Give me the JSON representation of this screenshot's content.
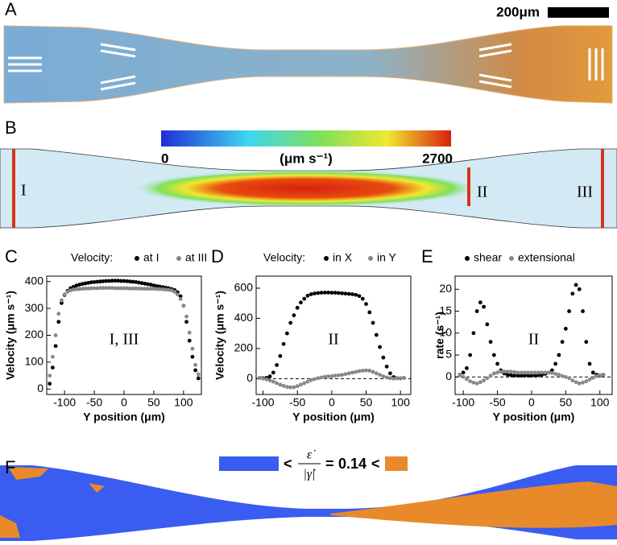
{
  "panels": {
    "A": {
      "letter": "A",
      "scale_bar": "200μm"
    },
    "B": {
      "letter": "B",
      "colorbar_min": 0,
      "colorbar_unit": "(μm s⁻¹)",
      "colorbar_max": 2700,
      "labels": [
        "I",
        "II",
        "III"
      ]
    },
    "F": {
      "letter": "F",
      "left": "<",
      "formula_num": "ε̇",
      "formula_den": "|γ̇|",
      "equals": "=",
      "threshold": 0.14,
      "right": "<"
    }
  },
  "chart_data": [
    {
      "type": "scatter",
      "panel": "C",
      "legend_title": "Velocity:",
      "xlabel": "Y position (μm)",
      "ylabel": "Velocity (μm s⁻¹)",
      "annotation": "I, III",
      "zero_line": false,
      "x": [
        -125,
        -120,
        -115,
        -110,
        -105,
        -100,
        -95,
        -90,
        -85,
        -80,
        -75,
        -70,
        -65,
        -60,
        -55,
        -50,
        -45,
        -40,
        -35,
        -30,
        -25,
        -20,
        -15,
        -10,
        -5,
        0,
        5,
        10,
        15,
        20,
        25,
        30,
        35,
        40,
        45,
        50,
        55,
        60,
        65,
        70,
        75,
        80,
        85,
        90,
        95,
        100,
        105,
        110,
        115,
        120,
        125
      ],
      "series": [
        {
          "name": "at I",
          "color": "#000000",
          "values": [
            20,
            80,
            160,
            250,
            320,
            350,
            365,
            375,
            380,
            385,
            388,
            391,
            393,
            395,
            397,
            398,
            399,
            400,
            401,
            402,
            402,
            403,
            403,
            403,
            402,
            402,
            401,
            400,
            399,
            398,
            396,
            394,
            392,
            390,
            388,
            385,
            383,
            381,
            379,
            377,
            375,
            372,
            368,
            360,
            345,
            310,
            250,
            180,
            120,
            70,
            40
          ]
        },
        {
          "name": "at III",
          "color": "#888888",
          "values": [
            50,
            120,
            200,
            280,
            330,
            352,
            362,
            367,
            370,
            371,
            372,
            373,
            374,
            374,
            375,
            375,
            375,
            376,
            376,
            376,
            376,
            376,
            375,
            375,
            375,
            375,
            375,
            374,
            374,
            374,
            374,
            373,
            373,
            373,
            373,
            373,
            372,
            372,
            371,
            370,
            369,
            367,
            362,
            352,
            335,
            310,
            270,
            210,
            150,
            90,
            55
          ]
        }
      ],
      "xlim": [
        -130,
        130
      ],
      "xticks": [
        -100,
        -50,
        0,
        50,
        100
      ],
      "ylim": [
        -20,
        420
      ],
      "yticks": [
        0,
        100,
        200,
        300,
        400
      ]
    },
    {
      "type": "scatter",
      "panel": "D",
      "legend_title": "Velocity:",
      "xlabel": "Y position (μm)",
      "ylabel": "Velocity (μm s⁻¹)",
      "annotation": "II",
      "zero_line": true,
      "x": [
        -105,
        -100,
        -95,
        -90,
        -85,
        -80,
        -75,
        -70,
        -65,
        -60,
        -55,
        -50,
        -45,
        -40,
        -35,
        -30,
        -25,
        -20,
        -15,
        -10,
        -5,
        0,
        5,
        10,
        15,
        20,
        25,
        30,
        35,
        40,
        45,
        50,
        55,
        60,
        65,
        70,
        75,
        80,
        85,
        90,
        95,
        100,
        105
      ],
      "series": [
        {
          "name": "in X",
          "color": "#000000",
          "values": [
            5,
            3,
            5,
            15,
            40,
            90,
            150,
            230,
            300,
            370,
            420,
            470,
            505,
            530,
            550,
            560,
            565,
            568,
            570,
            571,
            571,
            570,
            570,
            568,
            566,
            564,
            562,
            560,
            556,
            548,
            530,
            495,
            440,
            370,
            290,
            210,
            140,
            80,
            35,
            10,
            3,
            2,
            5
          ]
        },
        {
          "name": "in Y",
          "color": "#888888",
          "values": [
            5,
            0,
            -5,
            -12,
            -20,
            -30,
            -40,
            -48,
            -55,
            -58,
            -57,
            -50,
            -40,
            -30,
            -20,
            -10,
            -3,
            3,
            8,
            12,
            15,
            17,
            20,
            22,
            25,
            30,
            35,
            40,
            45,
            50,
            53,
            55,
            53,
            45,
            35,
            25,
            15,
            8,
            3,
            0,
            2,
            3,
            5
          ]
        }
      ],
      "xlim": [
        -110,
        115
      ],
      "xticks": [
        -100,
        -50,
        0,
        50,
        100
      ],
      "ylim": [
        -105,
        680
      ],
      "yticks": [
        0,
        200,
        400,
        600
      ]
    },
    {
      "type": "scatter",
      "panel": "E",
      "xlabel": "Y position (μm)",
      "ylabel": "rate (s⁻¹)",
      "annotation": "II",
      "zero_line": true,
      "x": [
        -105,
        -100,
        -95,
        -90,
        -85,
        -80,
        -75,
        -70,
        -65,
        -60,
        -55,
        -50,
        -45,
        -40,
        -35,
        -30,
        -25,
        -20,
        -15,
        -10,
        -5,
        0,
        5,
        10,
        15,
        20,
        25,
        30,
        35,
        40,
        45,
        50,
        55,
        60,
        65,
        70,
        75,
        80,
        85,
        90,
        95,
        100,
        105
      ],
      "series": [
        {
          "name": "shear",
          "color": "#000000",
          "values": [
            0.5,
            1,
            2,
            5,
            10,
            15,
            17,
            16,
            12,
            8,
            5,
            3,
            1.5,
            0.8,
            0.5,
            0.4,
            0.3,
            0.3,
            0.3,
            0.3,
            0.3,
            0.3,
            0.3,
            0.4,
            0.5,
            0.7,
            1,
            1.5,
            3,
            5,
            8,
            11,
            15,
            19,
            21,
            20,
            15,
            8,
            3,
            1,
            0.5,
            0.3,
            0.5
          ]
        },
        {
          "name": "extensional",
          "color": "#888888",
          "values": [
            0.5,
            0,
            -0.5,
            -1,
            -1.3,
            -1.5,
            -1.2,
            -0.8,
            -0.3,
            0.3,
            0.8,
            1,
            1.2,
            1.2,
            1.2,
            1.2,
            1.1,
            1,
            1,
            1,
            1,
            1,
            1,
            1,
            1,
            1,
            1,
            0.9,
            0.7,
            0.5,
            0.2,
            0,
            -0.3,
            -0.8,
            -1.2,
            -1.5,
            -1.3,
            -1,
            -0.6,
            -0.2,
            0.2,
            0.4,
            0.5
          ]
        }
      ],
      "xlim": [
        -112,
        118
      ],
      "xticks": [
        -100,
        -50,
        0,
        50,
        100
      ],
      "ylim": [
        -4,
        23
      ],
      "yticks": [
        0,
        5,
        10,
        15,
        20
      ]
    }
  ]
}
